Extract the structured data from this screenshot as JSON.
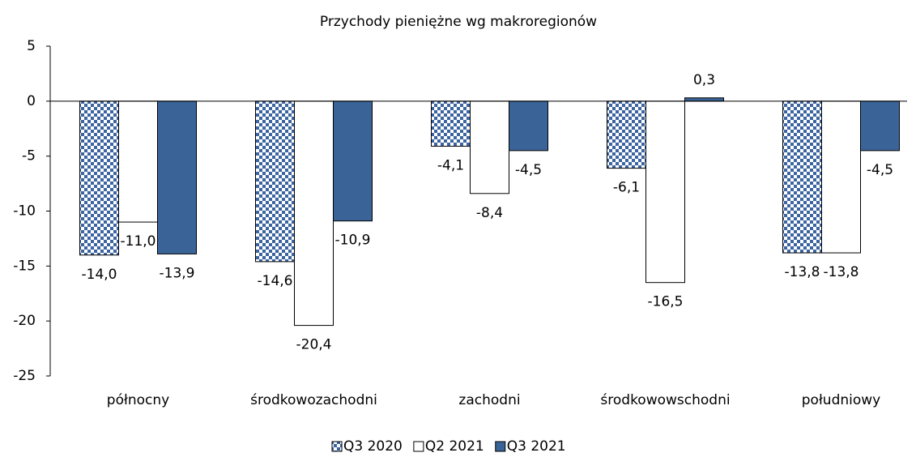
{
  "chart_data": {
    "type": "bar",
    "title": "Przychody pieniężne wg makroregionów",
    "categories": [
      "północny",
      "środkowozachodni",
      "zachodni",
      "środkowowschodni",
      "południowy"
    ],
    "series": [
      {
        "name": "Q3 2020",
        "color": "#3b64a0",
        "pattern": "checker",
        "values": [
          -14.0,
          -14.6,
          -4.1,
          -6.1,
          -13.8
        ],
        "value_labels": [
          "-14,0",
          "-14,6",
          "-4,1",
          "-6,1",
          "-13,8"
        ]
      },
      {
        "name": "Q2 2021",
        "color": "#ffffff",
        "values": [
          -11.0,
          -20.4,
          -8.4,
          -16.5,
          -13.8
        ],
        "value_labels": [
          "-11,0",
          "-20,4",
          "-8,4",
          "-16,5",
          "-13,8"
        ]
      },
      {
        "name": "Q3 2021",
        "color": "#3a6497",
        "values": [
          -13.9,
          -10.9,
          -4.5,
          0.3,
          -4.5
        ],
        "value_labels": [
          "-13,9",
          "-10,9",
          "-4,5",
          "0,3",
          "-4,5"
        ]
      }
    ],
    "ylim": [
      -25,
      5
    ],
    "yticks": [
      5,
      0,
      -5,
      -10,
      -15,
      -20,
      -25
    ],
    "legend": "bottom"
  }
}
